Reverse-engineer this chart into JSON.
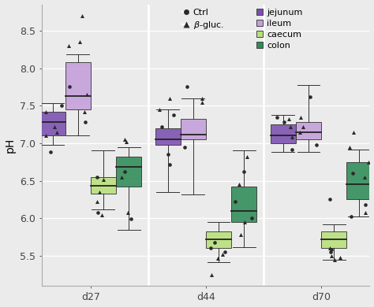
{
  "ylabel": "pH",
  "days": [
    "d27",
    "d44",
    "d70"
  ],
  "segments": [
    "jejunum",
    "ileum",
    "caecum",
    "colon"
  ],
  "colors": {
    "jejunum": "#7B4FAF",
    "ileum": "#C49FDA",
    "caecum": "#B8E07A",
    "colon": "#2E8B57"
  },
  "ylim": [
    5.1,
    8.85
  ],
  "yticks": [
    5.5,
    6.0,
    6.5,
    7.0,
    7.5,
    8.0,
    8.5
  ],
  "background_color": "#ebebeb",
  "boxplot_data": {
    "d27": {
      "jejunum": {
        "whislo": 6.98,
        "q1": 7.1,
        "med": 7.28,
        "q3": 7.42,
        "whishi": 7.53,
        "fliers_ctrl": [
          6.88,
          7.5
        ],
        "fliers_beta": [
          7.15,
          7.22,
          7.42,
          7.1
        ]
      },
      "ileum": {
        "whislo": 7.1,
        "q1": 7.45,
        "med": 7.63,
        "q3": 8.08,
        "whishi": 8.18,
        "fliers_ctrl": [
          7.75,
          7.28
        ],
        "fliers_beta": [
          8.35,
          8.7,
          8.3,
          7.65,
          7.42
        ]
      },
      "caecum": {
        "whislo": 6.12,
        "q1": 6.33,
        "med": 6.43,
        "q3": 6.55,
        "whishi": 6.9,
        "fliers_ctrl": [
          6.08,
          6.55
        ],
        "fliers_beta": [
          6.22,
          6.35,
          6.52,
          6.05
        ]
      },
      "colon": {
        "whislo": 5.85,
        "q1": 6.42,
        "med": 6.68,
        "q3": 6.82,
        "whishi": 6.95,
        "fliers_ctrl": [
          6.62,
          5.99
        ],
        "fliers_beta": [
          6.55,
          7.05,
          7.02,
          6.08
        ]
      }
    },
    "d44": {
      "jejunum": {
        "whislo": 6.35,
        "q1": 6.98,
        "med": 7.05,
        "q3": 7.2,
        "whishi": 7.45,
        "fliers_ctrl": [
          7.38,
          7.22,
          6.85,
          6.72
        ],
        "fliers_beta": [
          7.45,
          7.6
        ]
      },
      "ileum": {
        "whislo": 6.32,
        "q1": 7.05,
        "med": 7.12,
        "q3": 7.32,
        "whishi": 7.6,
        "fliers_ctrl": [
          7.75,
          6.95
        ],
        "fliers_beta": [
          7.55,
          7.6
        ]
      },
      "caecum": {
        "whislo": 5.42,
        "q1": 5.6,
        "med": 5.72,
        "q3": 5.82,
        "whishi": 5.95,
        "fliers_ctrl": [
          5.55,
          5.68,
          5.6
        ],
        "fliers_beta": [
          5.52,
          5.47,
          5.25
        ]
      },
      "colon": {
        "whislo": 5.62,
        "q1": 5.95,
        "med": 6.1,
        "q3": 6.42,
        "whishi": 6.9,
        "fliers_ctrl": [
          6.62,
          6.22,
          6.0
        ],
        "fliers_beta": [
          6.45,
          6.82,
          5.78,
          5.95
        ]
      }
    },
    "d70": {
      "jejunum": {
        "whislo": 6.88,
        "q1": 7.0,
        "med": 7.1,
        "q3": 7.25,
        "whishi": 7.38,
        "fliers_ctrl": [
          7.28,
          7.35,
          6.92
        ],
        "fliers_beta": [
          7.32,
          7.08,
          7.22
        ]
      },
      "ileum": {
        "whislo": 6.88,
        "q1": 7.05,
        "med": 7.15,
        "q3": 7.28,
        "whishi": 7.78,
        "fliers_ctrl": [
          7.62,
          6.98
        ],
        "fliers_beta": [
          7.35,
          7.22,
          7.15
        ]
      },
      "caecum": {
        "whislo": 5.45,
        "q1": 5.6,
        "med": 5.72,
        "q3": 5.82,
        "whishi": 5.92,
        "fliers_ctrl": [
          5.55,
          5.58,
          6.25
        ],
        "fliers_beta": [
          5.48,
          5.5,
          5.6,
          5.45
        ]
      },
      "colon": {
        "whislo": 6.02,
        "q1": 6.25,
        "med": 6.45,
        "q3": 6.75,
        "whishi": 6.92,
        "fliers_ctrl": [
          6.6,
          6.18,
          6.02
        ],
        "fliers_beta": [
          6.75,
          6.55,
          7.15,
          6.95,
          6.08
        ]
      }
    }
  },
  "box_width": 0.22,
  "group_centers": [
    1.0,
    2.0,
    3.0
  ],
  "offsets": {
    "jejunum": -0.33,
    "ileum": -0.11,
    "caecum": 0.11,
    "colon": 0.33
  }
}
